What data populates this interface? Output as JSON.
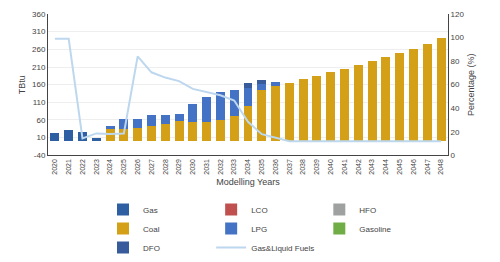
{
  "chart_data": {
    "type": "bar",
    "stacked": true,
    "grid": true,
    "legend": "bottom",
    "xlabel": "Modelling Years",
    "ylabel": "TBtu",
    "y2label": "Percentage (%)",
    "categories": [
      "2020",
      "2021",
      "2022",
      "2023",
      "2024",
      "2025",
      "2026",
      "2027",
      "2028",
      "2029",
      "2030",
      "2031",
      "2032",
      "2033",
      "2034",
      "2035",
      "2036",
      "2037",
      "2038",
      "2039",
      "2040",
      "2041",
      "2042",
      "2043",
      "2044",
      "2045",
      "2046",
      "2047",
      "2048"
    ],
    "ylim": [
      -40,
      360
    ],
    "yticks": [
      -40,
      10,
      60,
      110,
      160,
      210,
      260,
      310,
      360
    ],
    "y2lim": [
      0,
      120
    ],
    "y2ticks": [
      0,
      20,
      40,
      60,
      80,
      100,
      120
    ],
    "series": [
      {
        "name": "Gas",
        "type": "bar",
        "color": "#2E5FA3",
        "values": [
          22,
          33,
          27,
          8,
          0,
          0,
          0,
          0,
          0,
          0,
          0,
          0,
          0,
          0,
          0,
          0,
          0,
          0,
          0,
          0,
          0,
          0,
          0,
          0,
          0,
          0,
          0,
          0,
          0
        ]
      },
      {
        "name": "LCO",
        "type": "bar",
        "color": "#C0504D",
        "values": [
          0,
          0,
          0,
          0,
          0,
          0,
          0,
          0,
          0,
          0,
          0,
          0,
          0,
          0,
          0,
          0,
          0,
          0,
          0,
          0,
          0,
          0,
          0,
          0,
          0,
          0,
          0,
          0,
          0
        ]
      },
      {
        "name": "HFO",
        "type": "bar",
        "color": "#9FA0A0",
        "values": [
          0,
          0,
          0,
          0,
          0,
          0,
          0,
          0,
          0,
          0,
          0,
          0,
          0,
          0,
          0,
          0,
          0,
          0,
          0,
          0,
          0,
          0,
          0,
          0,
          0,
          0,
          0,
          0,
          0
        ]
      },
      {
        "name": "Coal",
        "type": "bar",
        "color": "#D4A017",
        "values": [
          0,
          0,
          0,
          0,
          35,
          35,
          37,
          44,
          50,
          57,
          55,
          55,
          60,
          70,
          100,
          145,
          155,
          165,
          175,
          185,
          195,
          205,
          215,
          227,
          238,
          250,
          262,
          275,
          292
        ]
      },
      {
        "name": "LPG",
        "type": "bar",
        "color": "#4472C4",
        "values": [
          0,
          0,
          0,
          0,
          8,
          28,
          25,
          30,
          25,
          20,
          50,
          70,
          80,
          75,
          50,
          18,
          13,
          0,
          0,
          0,
          0,
          0,
          0,
          0,
          0,
          0,
          0,
          0,
          0
        ]
      },
      {
        "name": "Gasoline",
        "type": "bar",
        "color": "#70AD47",
        "values": [
          0,
          0,
          0,
          0,
          0,
          0,
          0,
          0,
          0,
          0,
          0,
          0,
          0,
          0,
          0,
          0,
          0,
          0,
          0,
          0,
          0,
          0,
          0,
          0,
          0,
          0,
          0,
          0,
          0
        ]
      },
      {
        "name": "DFO",
        "type": "bar",
        "color": "#375B9B",
        "values": [
          0,
          0,
          0,
          0,
          0,
          0,
          0,
          0,
          0,
          0,
          0,
          0,
          0,
          0,
          15,
          10,
          0,
          0,
          0,
          0,
          0,
          0,
          0,
          0,
          0,
          0,
          0,
          0,
          0
        ]
      },
      {
        "name": "Gas&Liquid Fuels",
        "type": "line",
        "color": "#BDD7EE",
        "values": [
          290,
          290,
          8,
          22,
          20,
          22,
          240,
          195,
          180,
          170,
          148,
          140,
          130,
          115,
          55,
          20,
          10,
          0,
          0,
          0,
          0,
          0,
          0,
          0,
          0,
          0,
          0,
          0,
          0
        ]
      }
    ]
  }
}
